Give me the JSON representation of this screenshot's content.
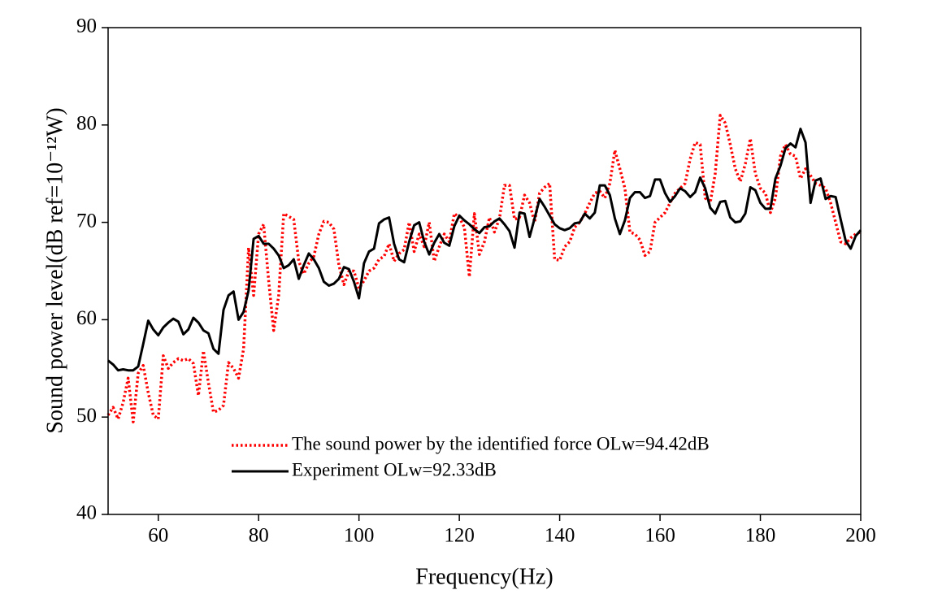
{
  "chart_data": {
    "type": "line",
    "xlabel": "Frequency(Hz)",
    "ylabel": "Sound power level(dB ref=10⁻¹²W)",
    "xlim": [
      50,
      200
    ],
    "xticks": [
      60,
      80,
      100,
      120,
      140,
      160,
      180,
      200
    ],
    "ylim": [
      40,
      90
    ],
    "yticks": [
      40,
      50,
      60,
      70,
      80,
      90
    ],
    "x": [
      50,
      51,
      52,
      53,
      54,
      55,
      56,
      57,
      58,
      59,
      60,
      61,
      62,
      63,
      64,
      65,
      66,
      67,
      68,
      69,
      70,
      71,
      72,
      73,
      74,
      75,
      76,
      77,
      78,
      79,
      80,
      81,
      82,
      83,
      84,
      85,
      86,
      87,
      88,
      89,
      90,
      91,
      92,
      93,
      94,
      95,
      96,
      97,
      98,
      99,
      100,
      101,
      102,
      103,
      104,
      105,
      106,
      107,
      108,
      109,
      110,
      111,
      112,
      113,
      114,
      115,
      116,
      117,
      118,
      119,
      120,
      121,
      122,
      123,
      124,
      125,
      126,
      127,
      128,
      129,
      130,
      131,
      132,
      133,
      134,
      135,
      136,
      137,
      138,
      139,
      140,
      141,
      142,
      143,
      144,
      145,
      146,
      147,
      148,
      149,
      150,
      151,
      152,
      153,
      154,
      155,
      156,
      157,
      158,
      159,
      160,
      161,
      162,
      163,
      164,
      165,
      166,
      167,
      168,
      169,
      170,
      171,
      172,
      173,
      174,
      175,
      176,
      177,
      178,
      179,
      180,
      181,
      182,
      183,
      184,
      185,
      186,
      187,
      188,
      189,
      190,
      191,
      192,
      193,
      194,
      195,
      196,
      197,
      198,
      199,
      200
    ],
    "legend": "lower-center",
    "series": [
      {
        "name": "The sound power by the identified force OLw=94.42dB",
        "color": "#ff0000",
        "style": "dotted",
        "values": [
          50.2,
          51.0,
          49.8,
          51.5,
          54.0,
          49.5,
          54.5,
          55.3,
          52.5,
          50.2,
          49.8,
          56.3,
          55.0,
          55.6,
          56.0,
          55.8,
          56.0,
          55.5,
          52.2,
          56.8,
          53.5,
          50.5,
          50.7,
          51.2,
          55.6,
          55.0,
          54.0,
          57.0,
          67.4,
          62.5,
          68.8,
          69.8,
          64.0,
          58.9,
          62.5,
          70.9,
          70.6,
          70.3,
          66.0,
          64.7,
          65.8,
          66.5,
          68.8,
          70.1,
          70.0,
          69.3,
          65.6,
          63.6,
          65.0,
          65.0,
          63.2,
          64.0,
          65.0,
          65.3,
          66.2,
          66.5,
          67.8,
          66.0,
          66.8,
          67.2,
          70.0,
          67.0,
          68.8,
          67.5,
          70.0,
          66.0,
          67.5,
          68.8,
          68.0,
          70.9,
          70.5,
          69.5,
          64.4,
          70.9,
          66.7,
          68.0,
          70.5,
          69.0,
          70.4,
          73.8,
          73.8,
          70.3,
          70.5,
          72.8,
          72.0,
          70.0,
          73.0,
          73.6,
          74.0,
          66.2,
          66.1,
          67.5,
          68.0,
          69.5,
          70.0,
          70.9,
          72.0,
          73.0,
          73.2,
          72.5,
          74.0,
          77.4,
          75.5,
          73.5,
          69.0,
          68.8,
          68.2,
          66.6,
          67.0,
          70.0,
          70.5,
          71.0,
          72.0,
          73.0,
          73.5,
          74.0,
          76.5,
          78.2,
          78.0,
          72.5,
          72.0,
          75.0,
          81.0,
          80.2,
          78.0,
          75.5,
          74.2,
          76.0,
          78.6,
          75.0,
          73.5,
          73.0,
          71.0,
          72.5,
          76.8,
          78.0,
          77.0,
          76.8,
          74.5,
          75.5,
          74.8,
          74.0,
          73.8,
          73.5,
          72.0,
          70.0,
          68.0,
          67.8,
          68.4,
          68.8,
          69.0
        ]
      },
      {
        "name": "Experiment OLw=92.33dB",
        "color": "#000000",
        "style": "solid",
        "values": [
          55.8,
          55.4,
          54.8,
          54.9,
          54.8,
          54.8,
          55.2,
          57.5,
          59.9,
          59.0,
          58.4,
          59.2,
          59.7,
          60.1,
          59.8,
          58.5,
          59.0,
          60.2,
          59.7,
          58.9,
          58.6,
          57.0,
          56.5,
          61.0,
          62.5,
          62.9,
          60.0,
          60.8,
          63.0,
          68.3,
          68.6,
          67.8,
          67.8,
          67.3,
          66.6,
          65.3,
          65.6,
          66.2,
          64.2,
          65.6,
          66.8,
          66.2,
          65.3,
          63.9,
          63.5,
          63.7,
          64.2,
          65.4,
          65.2,
          63.9,
          62.2,
          65.8,
          67.0,
          67.3,
          69.9,
          70.3,
          70.5,
          67.8,
          66.2,
          65.9,
          68.0,
          69.7,
          70.0,
          68.0,
          66.7,
          67.9,
          68.8,
          67.9,
          67.6,
          69.6,
          70.7,
          70.2,
          69.8,
          69.3,
          68.9,
          69.5,
          69.6,
          70.1,
          70.4,
          69.8,
          69.1,
          67.4,
          71.0,
          70.9,
          68.5,
          70.4,
          72.4,
          71.6,
          70.7,
          69.8,
          69.4,
          69.2,
          69.4,
          69.9,
          70.0,
          70.9,
          70.4,
          71.0,
          73.8,
          73.8,
          72.8,
          70.4,
          68.8,
          70.2,
          72.5,
          73.1,
          73.1,
          72.5,
          72.7,
          74.4,
          74.4,
          73.0,
          72.1,
          72.7,
          73.5,
          73.2,
          72.6,
          73.1,
          74.6,
          73.5,
          71.5,
          70.9,
          72.1,
          72.2,
          70.5,
          70.0,
          70.1,
          70.9,
          73.6,
          73.3,
          72.0,
          71.4,
          71.4,
          74.5,
          75.8,
          77.6,
          78.1,
          77.7,
          79.6,
          78.2,
          72.0,
          74.3,
          74.5,
          72.4,
          72.7,
          72.6,
          70.3,
          68.1,
          67.3,
          68.6,
          69.2
        ]
      }
    ]
  }
}
